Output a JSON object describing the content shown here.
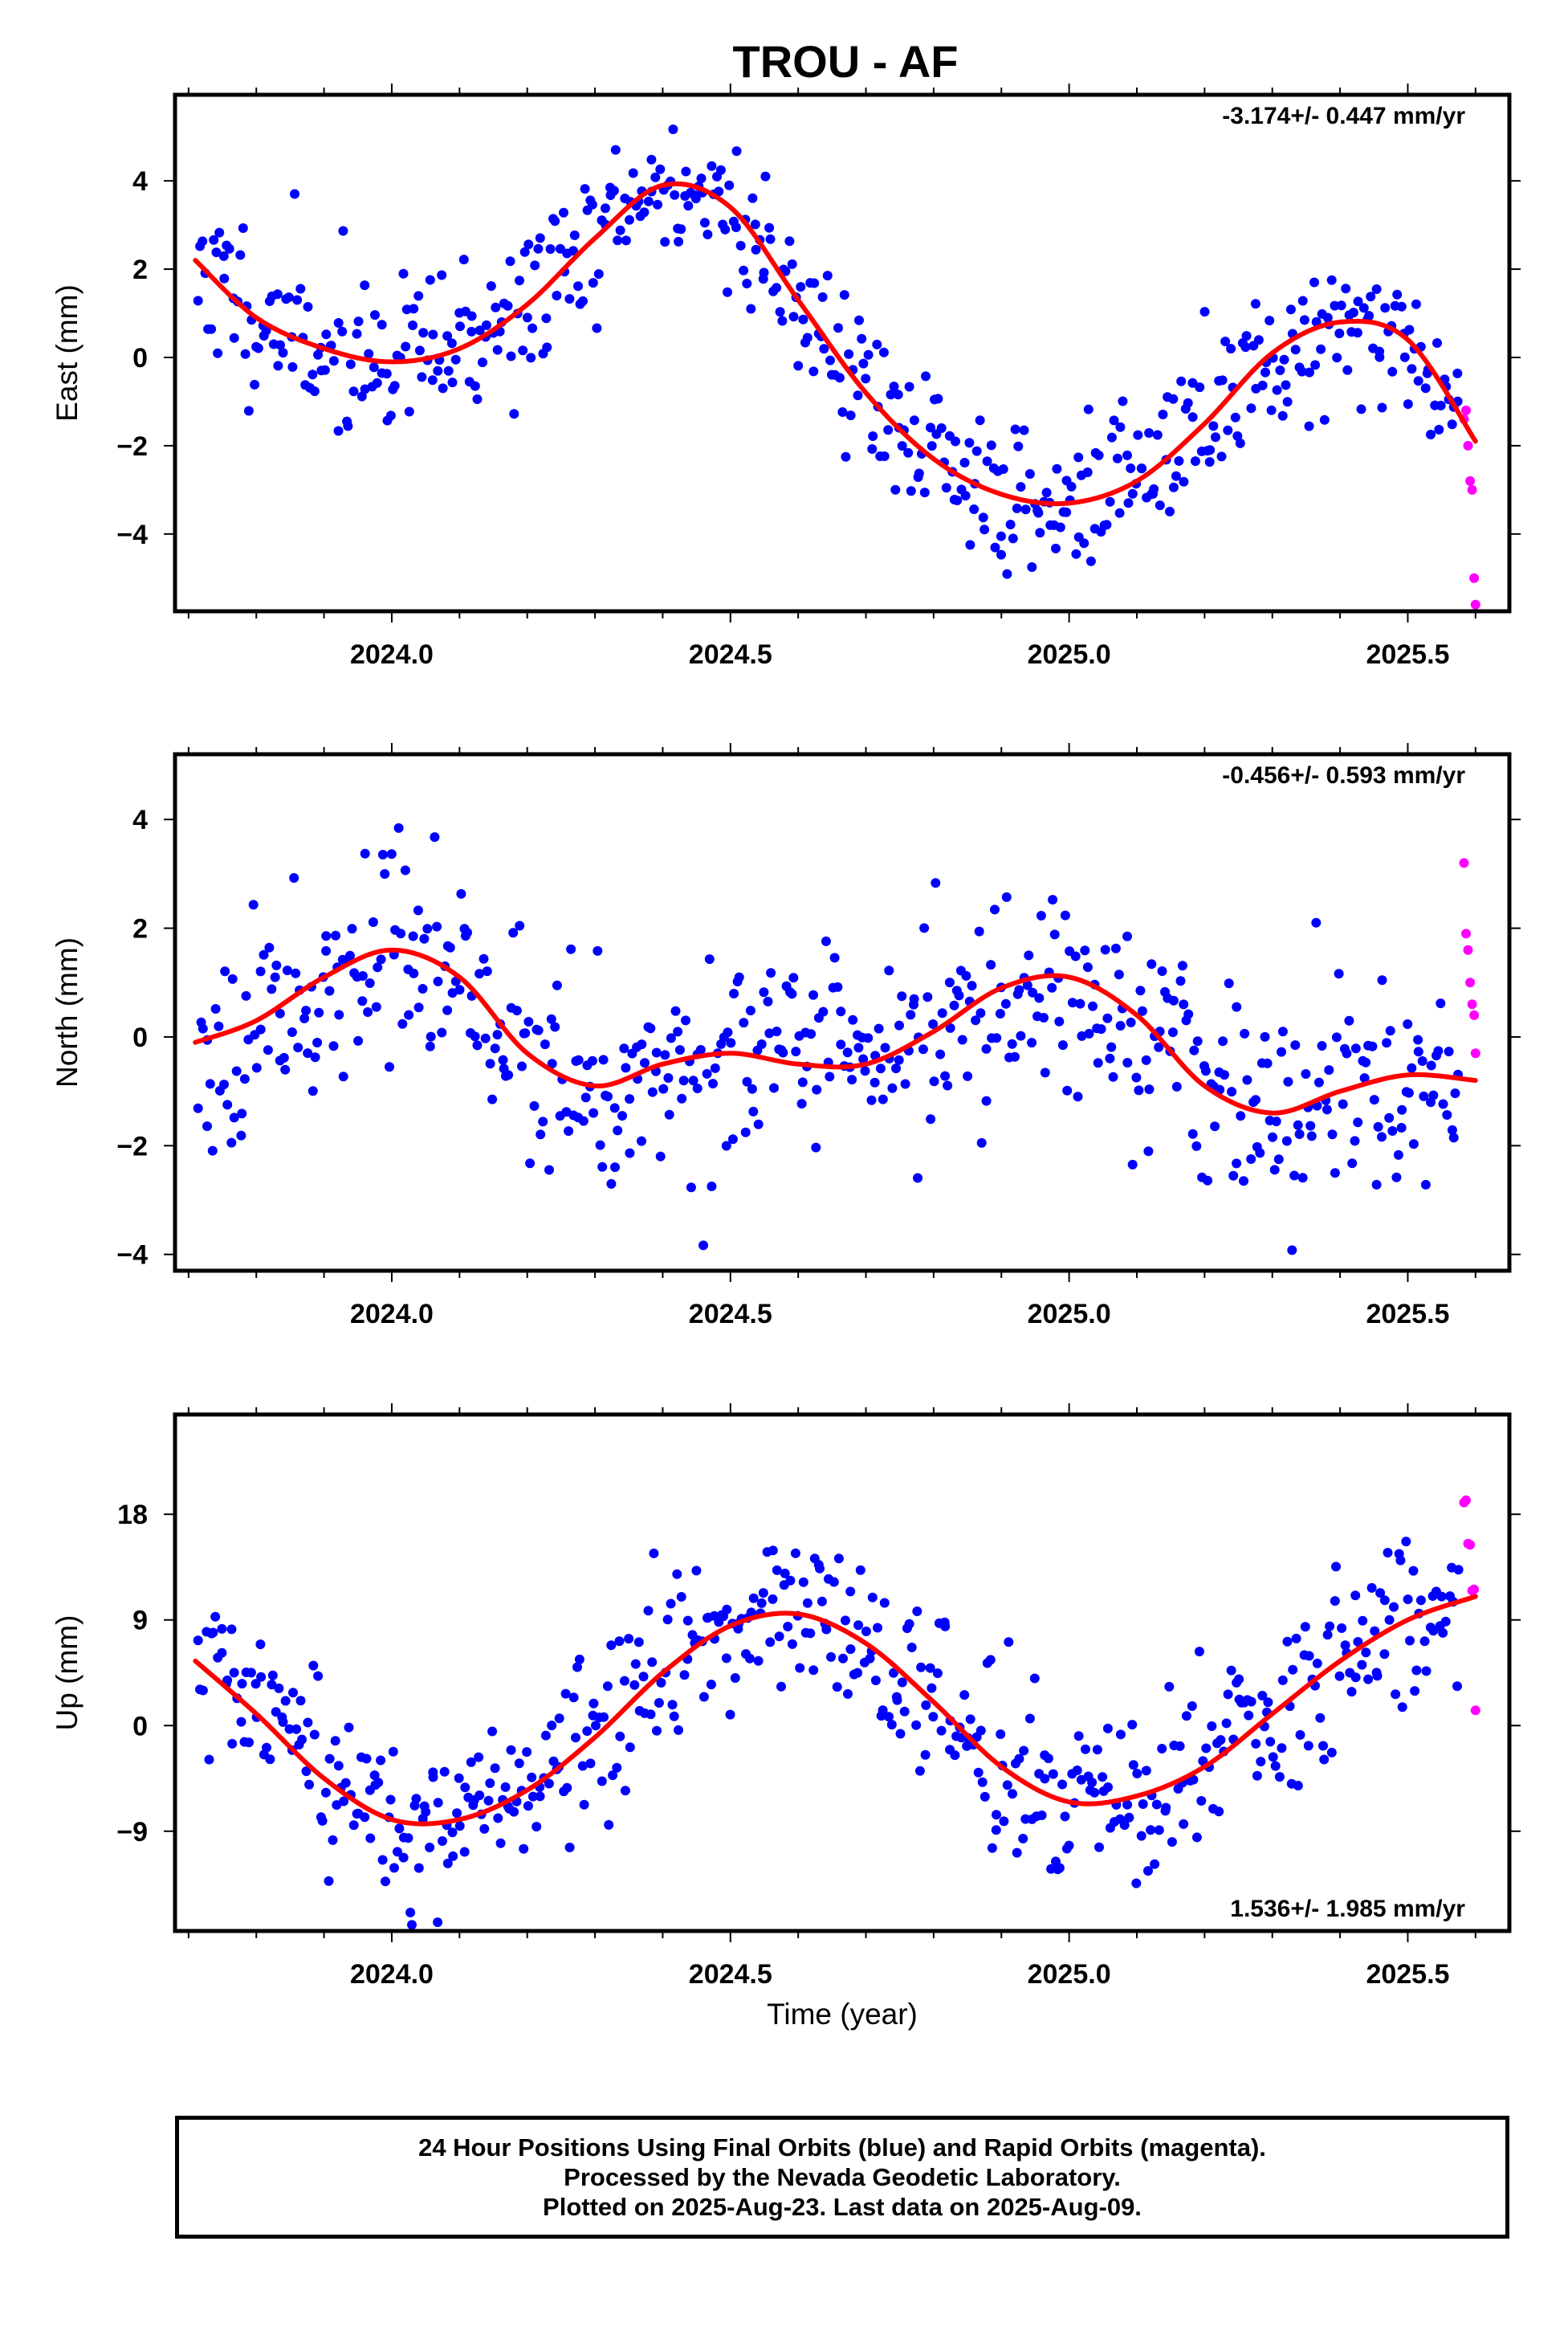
{
  "title": "TROU - AF",
  "colors": {
    "final": "#0000ff",
    "rapid": "#ff00ff",
    "fit": "#ff0000"
  },
  "chart_data": [
    {
      "type": "scatter",
      "component": "east",
      "ylabel": "East (mm)",
      "xlabel": "",
      "xlim": [
        2023.68,
        2025.65
      ],
      "ylim": [
        -5.75,
        5.95
      ],
      "xticks": [
        2024.0,
        2024.5,
        2025.0,
        2025.5
      ],
      "xtick_labels": [
        "2024.0",
        "2024.5",
        "2025.0",
        "2025.5"
      ],
      "yticks": [
        -4,
        -2,
        0,
        2,
        4
      ],
      "ytick_labels": [
        "−4",
        "−2",
        "0",
        "2",
        "4"
      ],
      "rate": "-3.174+/- 0.447 mm/yr",
      "rate_position": "top-right",
      "fit": {
        "x": [
          2023.71,
          2023.8,
          2023.9,
          2024.0,
          2024.1,
          2024.2,
          2024.3,
          2024.4,
          2024.5,
          2024.6,
          2024.7,
          2024.8,
          2024.9,
          2025.0,
          2025.1,
          2025.2,
          2025.3,
          2025.4,
          2025.5,
          2025.6
        ],
        "y": [
          2.2,
          0.9,
          0.2,
          -0.1,
          0.2,
          1.2,
          2.7,
          3.9,
          3.4,
          1.3,
          -0.8,
          -2.3,
          -3.1,
          -3.3,
          -2.8,
          -1.5,
          0.1,
          0.8,
          0.4,
          -1.9
        ]
      },
      "rapid_points": {
        "x": [
          2025.583,
          2025.586,
          2025.589,
          2025.592,
          2025.595,
          2025.598,
          2025.6
        ],
        "y": [
          -1.4,
          -1.2,
          -2.0,
          -2.8,
          -3.0,
          -5.0,
          -5.6
        ]
      },
      "seed": 11,
      "noise_sd": 0.9,
      "n_final": 520
    },
    {
      "type": "scatter",
      "component": "north",
      "ylabel": "North (mm)",
      "xlabel": "",
      "xlim": [
        2023.68,
        2025.65
      ],
      "ylim": [
        -4.3,
        5.2
      ],
      "xticks": [
        2024.0,
        2024.5,
        2025.0,
        2025.5
      ],
      "xtick_labels": [
        "2024.0",
        "2024.5",
        "2025.0",
        "2025.5"
      ],
      "yticks": [
        -4,
        -2,
        0,
        2,
        4
      ],
      "ytick_labels": [
        "−4",
        "−2",
        "0",
        "2",
        "4"
      ],
      "rate": "-0.456+/- 0.593 mm/yr",
      "rate_position": "top-right",
      "fit": {
        "x": [
          2023.71,
          2023.8,
          2023.9,
          2024.0,
          2024.1,
          2024.2,
          2024.3,
          2024.4,
          2024.5,
          2024.6,
          2024.7,
          2024.8,
          2024.9,
          2025.0,
          2025.1,
          2025.2,
          2025.3,
          2025.4,
          2025.5,
          2025.6
        ],
        "y": [
          -0.1,
          0.3,
          1.1,
          1.6,
          1.1,
          -0.3,
          -0.9,
          -0.5,
          -0.3,
          -0.5,
          -0.5,
          0.1,
          0.9,
          1.1,
          0.4,
          -0.9,
          -1.4,
          -1.0,
          -0.7,
          -0.8
        ]
      },
      "rapid_points": {
        "x": [
          2025.583,
          2025.586,
          2025.589,
          2025.592,
          2025.595,
          2025.598,
          2025.6
        ],
        "y": [
          3.2,
          1.9,
          1.6,
          1.0,
          0.6,
          0.4,
          -0.3
        ]
      },
      "seed": 23,
      "noise_sd": 0.95,
      "n_final": 520
    },
    {
      "type": "scatter",
      "component": "up",
      "ylabel": "Up (mm)",
      "xlabel": "Time (year)",
      "xlim": [
        2023.68,
        2025.65
      ],
      "ylim": [
        -17.5,
        26.5
      ],
      "xticks": [
        2024.0,
        2024.5,
        2025.0,
        2025.5
      ],
      "xtick_labels": [
        "2024.0",
        "2024.5",
        "2025.0",
        "2025.5"
      ],
      "yticks": [
        -9,
        0,
        9,
        18
      ],
      "ytick_labels": [
        "−9",
        "0",
        "9",
        "18"
      ],
      "rate": "1.536+/- 1.985 mm/yr",
      "rate_position": "bottom-right",
      "fit": {
        "x": [
          2023.71,
          2023.8,
          2023.9,
          2024.0,
          2024.1,
          2024.2,
          2024.3,
          2024.4,
          2024.5,
          2024.6,
          2024.7,
          2024.8,
          2024.9,
          2025.0,
          2025.1,
          2025.2,
          2025.3,
          2025.4,
          2025.5,
          2025.6
        ],
        "y": [
          5.5,
          1.0,
          -4.5,
          -8.0,
          -8.0,
          -5.5,
          -1.0,
          4.5,
          8.5,
          9.5,
          7.0,
          2.0,
          -3.5,
          -6.5,
          -6.0,
          -3.5,
          1.0,
          5.5,
          9.0,
          11.0
        ]
      },
      "rapid_points": {
        "x": [
          2025.583,
          2025.586,
          2025.589,
          2025.592,
          2025.595,
          2025.598,
          2025.6
        ],
        "y": [
          19.0,
          19.2,
          15.5,
          15.4,
          11.5,
          11.6,
          1.3
        ]
      },
      "seed": 37,
      "noise_sd": 3.6,
      "n_final": 520
    }
  ],
  "footer": {
    "line1": "24 Hour Positions Using Final Orbits (blue) and Rapid Orbits (magenta).",
    "line2": "Processed by the Nevada Geodetic Laboratory.",
    "line3": "Plotted on 2025-Aug-23. Last data on 2025-Aug-09."
  }
}
